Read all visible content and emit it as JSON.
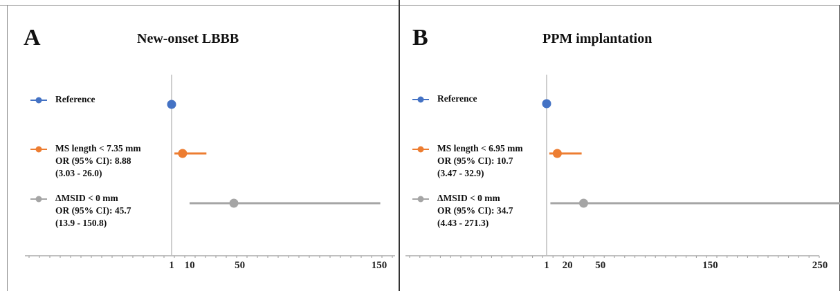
{
  "chart_data": [
    {
      "type": "forest",
      "panel": "A",
      "title": "New-onset LBBB",
      "x_ticks": [
        1,
        10,
        50,
        150
      ],
      "x_tick_labels": [
        "1",
        "10",
        "50",
        "150"
      ],
      "xlim": [
        -35,
        150
      ],
      "series": [
        {
          "name": "Reference",
          "color": "#4472c4",
          "or": 1,
          "ci": null,
          "label_lines": [
            "Reference"
          ]
        },
        {
          "name": "MS length < 7.35 mm",
          "color": "#ed7d31",
          "or": 8.88,
          "ci": [
            3.03,
            26.0
          ],
          "label_lines": [
            "MS length < 7.35 mm",
            "OR (95% CI): 8.88",
            "(3.03 - 26.0)"
          ]
        },
        {
          "name": "ΔMSID < 0 mm",
          "color": "#a5a5a5",
          "or": 45.7,
          "ci": [
            13.9,
            150.8
          ],
          "label_lines": [
            "ΔMSID < 0 mm",
            "OR (95% CI): 45.7",
            "(13.9 - 150.8)"
          ]
        }
      ]
    },
    {
      "type": "forest",
      "panel": "B",
      "title": "PPM implantation",
      "x_ticks": [
        1,
        20,
        50,
        150,
        250
      ],
      "x_tick_labels": [
        "1",
        "20",
        "50",
        "150",
        "250"
      ],
      "xlim": [
        -50,
        275
      ],
      "series": [
        {
          "name": "Reference",
          "color": "#4472c4",
          "or": 1,
          "ci": null,
          "label_lines": [
            "Reference"
          ]
        },
        {
          "name": "MS length < 6.95 mm",
          "color": "#ed7d31",
          "or": 10.7,
          "ci": [
            3.47,
            32.9
          ],
          "label_lines": [
            "MS length < 6.95 mm",
            "OR (95% CI): 10.7",
            "(3.47 - 32.9)"
          ]
        },
        {
          "name": "ΔMSID < 0 mm",
          "color": "#a5a5a5",
          "or": 34.7,
          "ci": [
            4.43,
            271.3
          ],
          "label_lines": [
            "ΔMSID < 0 mm",
            "OR (95% CI): 34.7",
            "(4.43 - 271.3)"
          ]
        }
      ]
    }
  ]
}
